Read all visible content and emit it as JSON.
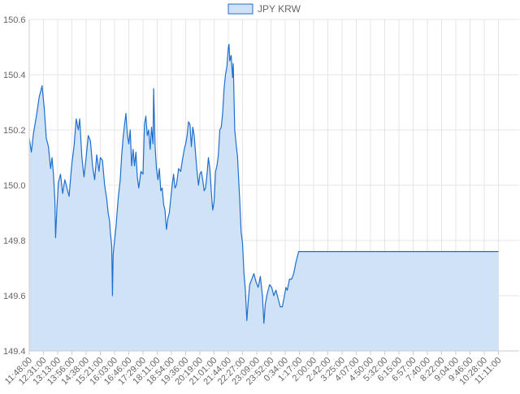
{
  "chart_data": {
    "type": "area",
    "title": "",
    "xlabel": "",
    "ylabel": "",
    "legend": {
      "position": "top",
      "entries": [
        "JPY KRW"
      ]
    },
    "grid": true,
    "ylim": [
      149.4,
      150.6
    ],
    "yticks": [
      "150.6",
      "150.4",
      "150.2",
      "150.0",
      "149.8",
      "149.6",
      "149.4"
    ],
    "xticks": [
      "11:48:00",
      "12:31:00",
      "13:13:00",
      "13:56:00",
      "14:38:00",
      "15:21:00",
      "16:03:00",
      "16:46:00",
      "17:29:00",
      "18:11:00",
      "18:54:00",
      "19:36:00",
      "20:19:00",
      "21:01:00",
      "21:44:00",
      "22:27:00",
      "23:09:00",
      "23:52:00",
      "0:34:00",
      "1:17:00",
      "2:00:00",
      "2:42:00",
      "3:25:00",
      "4:07:00",
      "4:50:00",
      "5:32:00",
      "6:15:00",
      "6:57:00",
      "7:40:00",
      "8:22:00",
      "9:04:00",
      "9:46:00",
      "10:28:00",
      "11:11:00"
    ],
    "series": [
      {
        "name": "JPY KRW",
        "color": "#1f6fd0",
        "fill": "#cfe2f6",
        "points": [
          [
            0,
            150.17
          ],
          [
            0.15,
            150.12
          ],
          [
            0.3,
            150.19
          ],
          [
            0.5,
            150.25
          ],
          [
            0.7,
            150.32
          ],
          [
            0.9,
            150.36
          ],
          [
            1.05,
            150.28
          ],
          [
            1.2,
            150.17
          ],
          [
            1.35,
            150.14
          ],
          [
            1.5,
            150.06
          ],
          [
            1.6,
            150.1
          ],
          [
            1.7,
            150.04
          ],
          [
            1.8,
            149.95
          ],
          [
            1.85,
            149.81
          ],
          [
            1.95,
            149.92
          ],
          [
            2.05,
            150.01
          ],
          [
            2.2,
            150.04
          ],
          [
            2.35,
            149.97
          ],
          [
            2.5,
            150.02
          ],
          [
            2.65,
            149.99
          ],
          [
            2.8,
            149.96
          ],
          [
            3.0,
            150.08
          ],
          [
            3.15,
            150.14
          ],
          [
            3.3,
            150.24
          ],
          [
            3.45,
            150.2
          ],
          [
            3.55,
            150.24
          ],
          [
            3.7,
            150.1
          ],
          [
            3.85,
            150.03
          ],
          [
            4.0,
            150.1
          ],
          [
            4.15,
            150.18
          ],
          [
            4.3,
            150.16
          ],
          [
            4.45,
            150.07
          ],
          [
            4.6,
            150.02
          ],
          [
            4.75,
            150.11
          ],
          [
            4.9,
            150.05
          ],
          [
            5.0,
            150.1
          ],
          [
            5.15,
            150.09
          ],
          [
            5.3,
            150.0
          ],
          [
            5.45,
            149.95
          ],
          [
            5.55,
            149.9
          ],
          [
            5.65,
            149.87
          ],
          [
            5.7,
            149.83
          ],
          [
            5.8,
            149.78
          ],
          [
            5.85,
            149.6
          ],
          [
            5.9,
            149.75
          ],
          [
            6.0,
            149.8
          ],
          [
            6.1,
            149.85
          ],
          [
            6.25,
            149.95
          ],
          [
            6.4,
            150.02
          ],
          [
            6.5,
            150.11
          ],
          [
            6.6,
            150.17
          ],
          [
            6.7,
            150.22
          ],
          [
            6.8,
            150.26
          ],
          [
            6.9,
            150.18
          ],
          [
            7.0,
            150.15
          ],
          [
            7.1,
            150.2
          ],
          [
            7.2,
            150.07
          ],
          [
            7.3,
            150.13
          ],
          [
            7.4,
            150.07
          ],
          [
            7.5,
            150.12
          ],
          [
            7.6,
            150.03
          ],
          [
            7.7,
            149.99
          ],
          [
            7.85,
            150.05
          ],
          [
            8.0,
            150.04
          ],
          [
            8.1,
            150.22
          ],
          [
            8.2,
            150.25
          ],
          [
            8.3,
            150.18
          ],
          [
            8.4,
            150.2
          ],
          [
            8.5,
            150.13
          ],
          [
            8.6,
            150.21
          ],
          [
            8.7,
            150.15
          ],
          [
            8.75,
            150.35
          ],
          [
            8.85,
            150.14
          ],
          [
            8.95,
            150.06
          ],
          [
            9.05,
            150.02
          ],
          [
            9.15,
            150.06
          ],
          [
            9.25,
            149.98
          ],
          [
            9.35,
            149.99
          ],
          [
            9.45,
            149.93
          ],
          [
            9.55,
            149.91
          ],
          [
            9.6,
            149.87
          ],
          [
            9.65,
            149.84
          ],
          [
            9.75,
            149.88
          ],
          [
            9.85,
            149.9
          ],
          [
            9.95,
            149.95
          ],
          [
            10.05,
            150.0
          ],
          [
            10.15,
            150.04
          ],
          [
            10.25,
            149.99
          ],
          [
            10.35,
            150.0
          ],
          [
            10.5,
            150.06
          ],
          [
            10.65,
            150.05
          ],
          [
            10.8,
            150.1
          ],
          [
            10.9,
            150.13
          ],
          [
            11.0,
            150.15
          ],
          [
            11.1,
            150.18
          ],
          [
            11.2,
            150.23
          ],
          [
            11.3,
            150.22
          ],
          [
            11.4,
            150.14
          ],
          [
            11.5,
            150.21
          ],
          [
            11.6,
            150.18
          ],
          [
            11.7,
            150.11
          ],
          [
            11.8,
            150.05
          ],
          [
            11.9,
            150.0
          ],
          [
            12.0,
            150.04
          ],
          [
            12.1,
            150.05
          ],
          [
            12.2,
            150.02
          ],
          [
            12.3,
            149.98
          ],
          [
            12.4,
            149.99
          ],
          [
            12.5,
            150.04
          ],
          [
            12.6,
            150.1
          ],
          [
            12.7,
            150.06
          ],
          [
            12.8,
            149.98
          ],
          [
            12.9,
            149.91
          ],
          [
            13.0,
            149.94
          ],
          [
            13.1,
            150.05
          ],
          [
            13.2,
            150.07
          ],
          [
            13.3,
            150.11
          ],
          [
            13.4,
            150.2
          ],
          [
            13.5,
            150.21
          ],
          [
            13.6,
            150.26
          ],
          [
            13.7,
            150.35
          ],
          [
            13.8,
            150.4
          ],
          [
            13.9,
            150.43
          ],
          [
            14.0,
            150.5
          ],
          [
            14.05,
            150.51
          ],
          [
            14.1,
            150.45
          ],
          [
            14.2,
            150.47
          ],
          [
            14.3,
            150.39
          ],
          [
            14.35,
            150.44
          ],
          [
            14.45,
            150.2
          ],
          [
            14.55,
            150.15
          ],
          [
            14.65,
            150.1
          ],
          [
            14.75,
            150.0
          ],
          [
            14.8,
            149.95
          ],
          [
            14.85,
            149.89
          ],
          [
            14.9,
            149.83
          ],
          [
            15.0,
            149.79
          ],
          [
            15.1,
            149.68
          ],
          [
            15.2,
            149.62
          ],
          [
            15.3,
            149.51
          ],
          [
            15.4,
            149.58
          ],
          [
            15.5,
            149.64
          ],
          [
            15.65,
            149.66
          ],
          [
            15.8,
            149.68
          ],
          [
            15.95,
            149.65
          ],
          [
            16.1,
            149.63
          ],
          [
            16.25,
            149.67
          ],
          [
            16.4,
            149.6
          ],
          [
            16.5,
            149.5
          ],
          [
            16.6,
            149.57
          ],
          [
            16.75,
            149.61
          ],
          [
            16.9,
            149.64
          ],
          [
            17.05,
            149.63
          ],
          [
            17.2,
            149.6
          ],
          [
            17.35,
            149.62
          ],
          [
            17.5,
            149.59
          ],
          [
            17.65,
            149.56
          ],
          [
            17.8,
            149.56
          ],
          [
            17.95,
            149.6
          ],
          [
            18.05,
            149.63
          ],
          [
            18.15,
            149.62
          ],
          [
            18.3,
            149.66
          ],
          [
            18.45,
            149.66
          ],
          [
            18.6,
            149.68
          ],
          [
            18.75,
            149.72
          ],
          [
            18.85,
            149.74
          ],
          [
            18.95,
            149.76
          ],
          [
            33.0,
            149.76
          ]
        ]
      }
    ]
  }
}
